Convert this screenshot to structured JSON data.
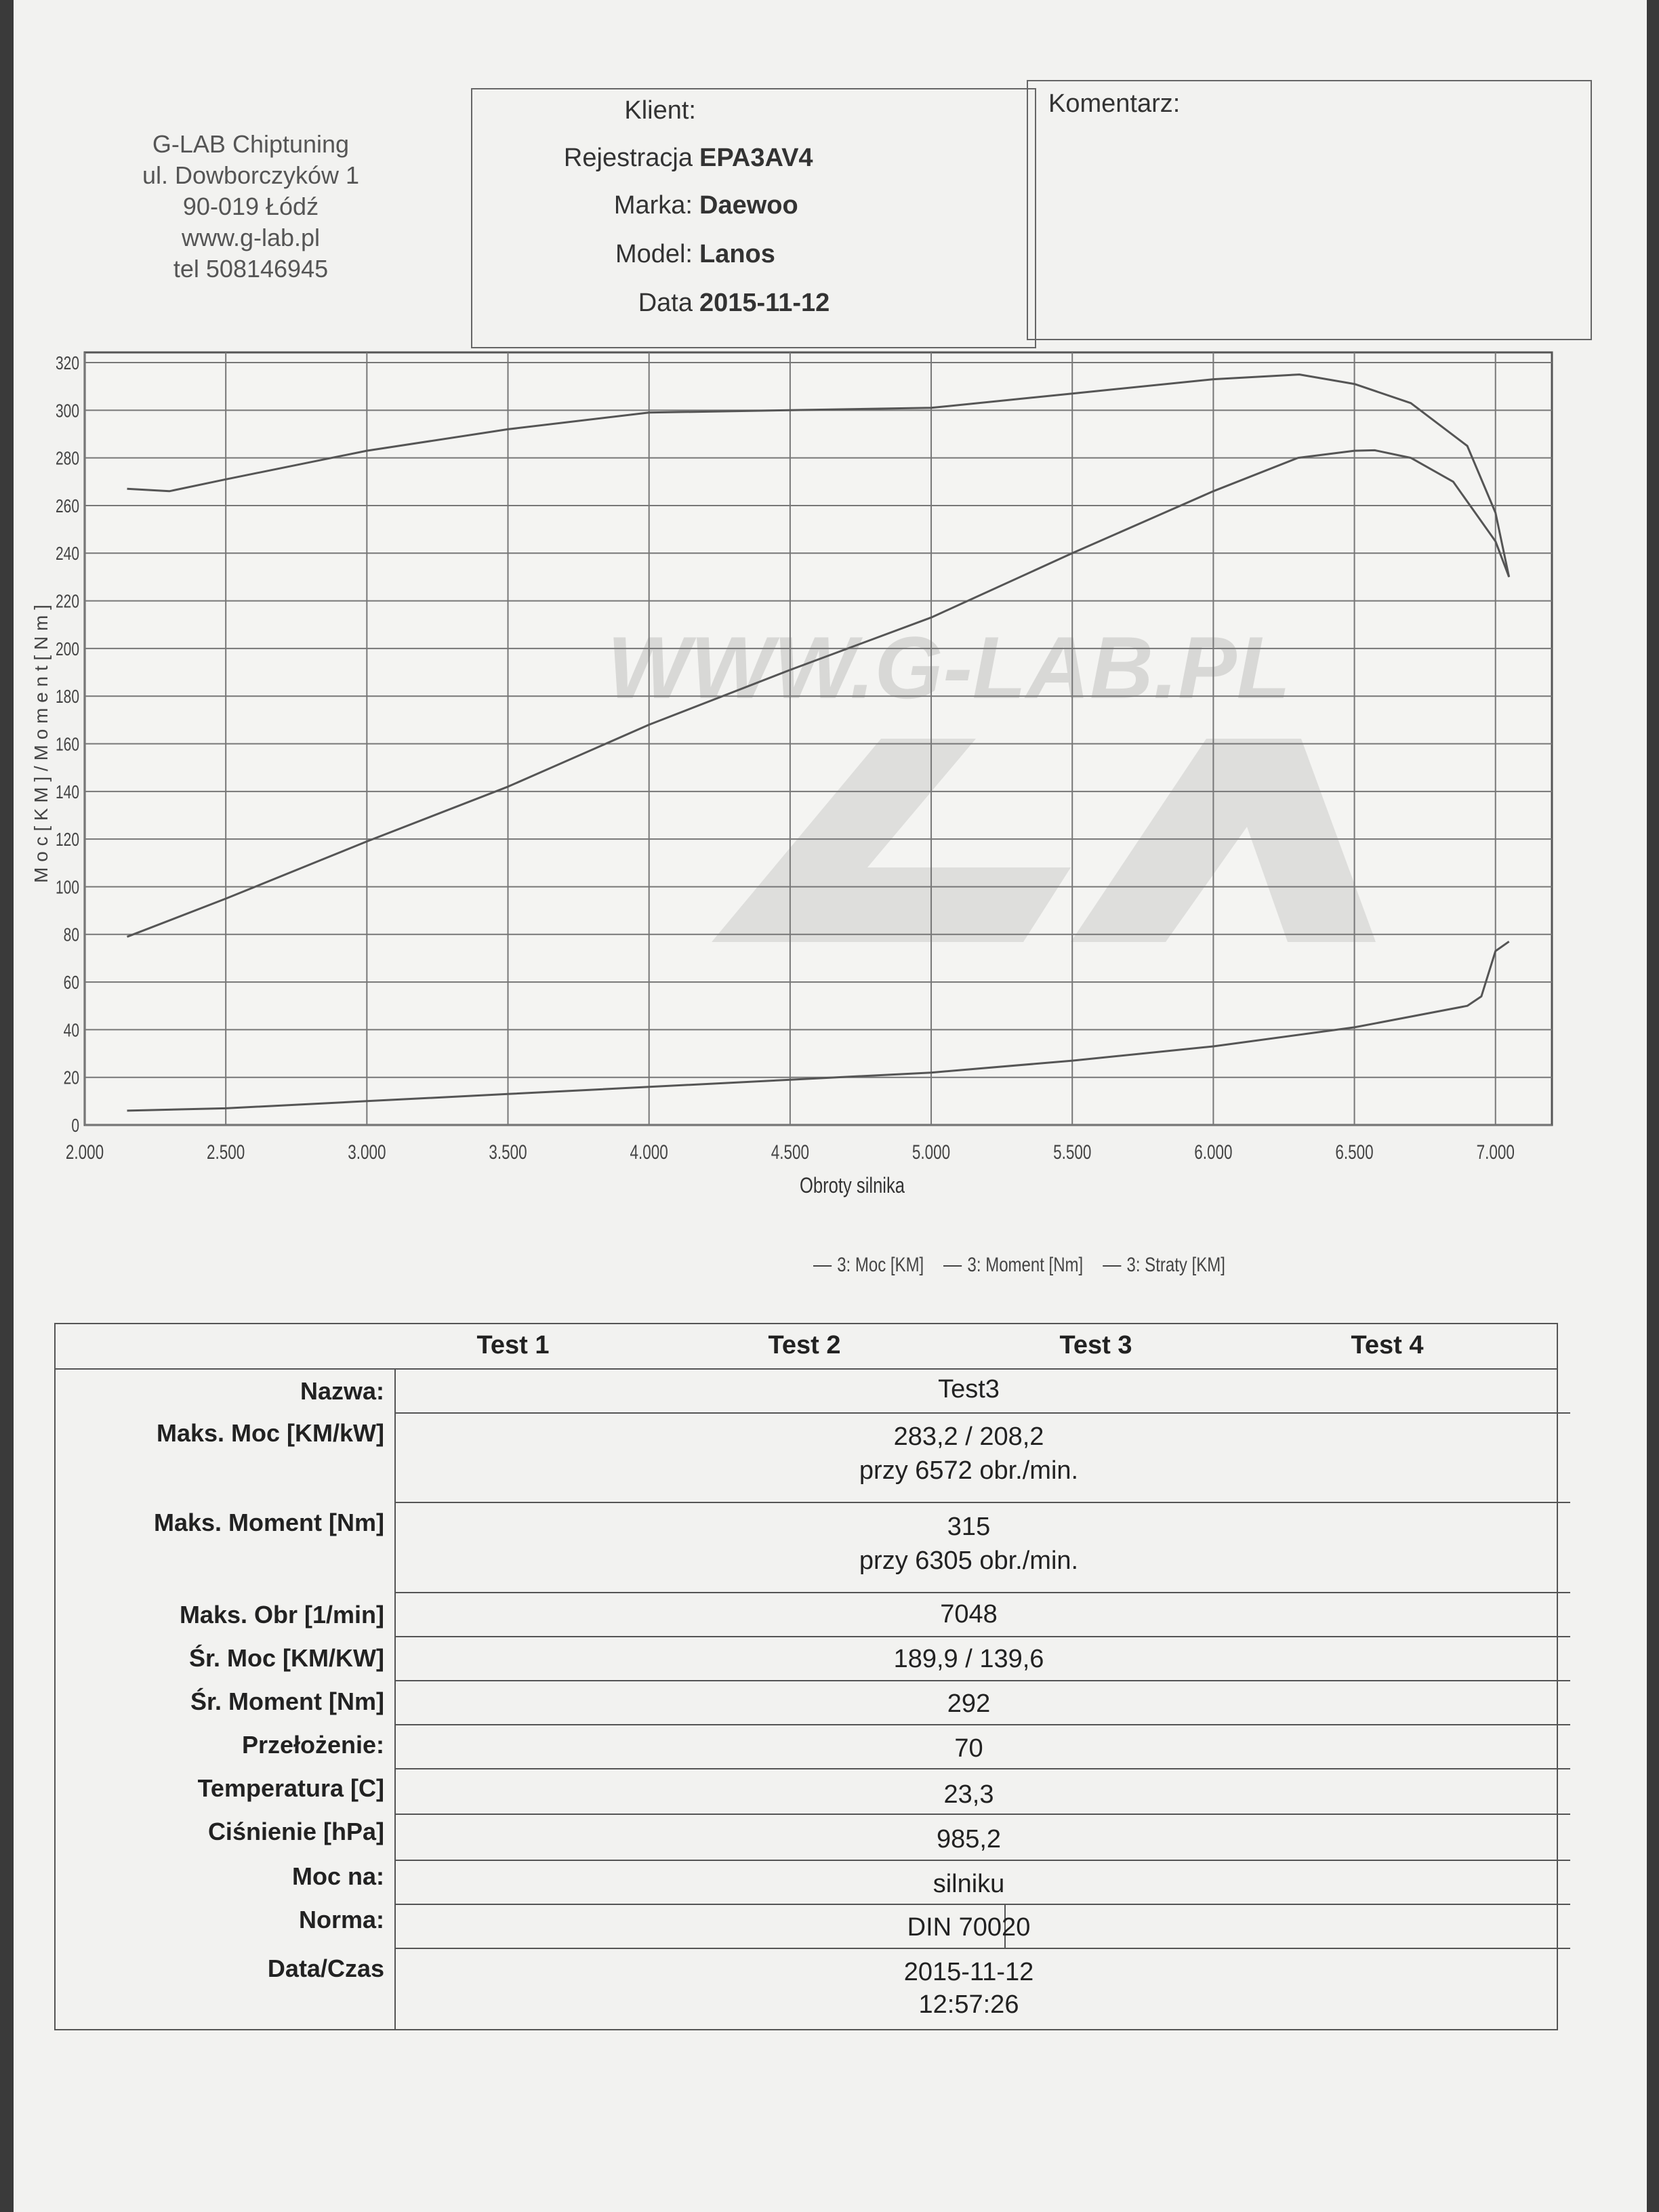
{
  "header": {
    "company_lines": [
      "G-LAB Chiptuning",
      "ul. Dowborczyków 1",
      "90-019 Łódź",
      "www.g-lab.pl",
      "tel 508146945"
    ],
    "client_label": "Klient:",
    "client_value": "",
    "registration_label": "Rejestracja",
    "registration_value": "EPA3AV4",
    "make_label": "Marka:",
    "make_value": "Daewoo",
    "model_label": "Model:",
    "model_value": "Lanos",
    "date_label": "Data",
    "date_value": "2015-11-12",
    "comment_label": "Komentarz:"
  },
  "chart_data": {
    "type": "line",
    "watermark": "WWW.G-LAB.PL",
    "xlabel": "Obroty silnika",
    "ylabel": "M o c  [ K M ]  /  M o m e n t  [ N m ]",
    "xlim": [
      2000,
      7200
    ],
    "ylim": [
      0,
      320
    ],
    "x_ticks": [
      2000,
      2500,
      3000,
      3500,
      4000,
      4500,
      5000,
      5500,
      6000,
      6500,
      7000
    ],
    "x_tick_labels": [
      "2.000",
      "2.500",
      "3.000",
      "3.500",
      "4.000",
      "4.500",
      "5.000",
      "5.500",
      "6.000",
      "6.500",
      "7.000"
    ],
    "y_ticks": [
      0,
      20,
      40,
      60,
      80,
      100,
      120,
      140,
      160,
      180,
      200,
      220,
      240,
      260,
      280,
      300,
      320
    ],
    "grid": true,
    "legend_position": "bottom-center",
    "series": [
      {
        "name": "3: Moc [KM]",
        "x": [
          2150,
          2500,
          3000,
          3500,
          4000,
          4500,
          5000,
          5500,
          6000,
          6300,
          6500,
          6572,
          6700,
          6850,
          7000,
          7048
        ],
        "y": [
          79,
          95,
          119,
          142,
          168,
          191,
          213,
          240,
          266,
          280,
          283,
          283.2,
          280,
          270,
          245,
          230
        ]
      },
      {
        "name": "3: Moment [Nm]",
        "x": [
          2150,
          2300,
          2500,
          3000,
          3500,
          4000,
          4500,
          5000,
          5500,
          6000,
          6305,
          6500,
          6700,
          6900,
          7000,
          7048
        ],
        "y": [
          267,
          266,
          271,
          283,
          292,
          299,
          300,
          301,
          307,
          313,
          315,
          311,
          303,
          285,
          257,
          230
        ]
      },
      {
        "name": "3: Straty [KM]",
        "x": [
          2150,
          2500,
          3000,
          3500,
          4000,
          4500,
          5000,
          5500,
          6000,
          6500,
          6900,
          6950,
          7000,
          7048
        ],
        "y": [
          6,
          7,
          10,
          13,
          16,
          19,
          22,
          27,
          33,
          41,
          50,
          54,
          73,
          77
        ]
      }
    ]
  },
  "table": {
    "test_headers": [
      "Test 1",
      "Test 2",
      "Test 3",
      "Test 4"
    ],
    "rows": [
      {
        "label": "Nazwa:",
        "value": "Test3"
      },
      {
        "label": "Maks. Moc [KM/kW]",
        "value": "283,2 / 208,2",
        "value2": "przy 6572 obr./min."
      },
      {
        "label": "Maks. Moment [Nm]",
        "value": "315",
        "value2": "przy 6305 obr./min."
      },
      {
        "label": "Maks. Obr [1/min]",
        "value": "7048"
      },
      {
        "label": "Śr. Moc [KM/KW]",
        "value": "189,9 / 139,6"
      },
      {
        "label": "Śr. Moment [Nm]",
        "value": "292"
      },
      {
        "label": "Przełożenie:",
        "value": "70"
      },
      {
        "label": "Temperatura [C]",
        "value": "23,3"
      },
      {
        "label": "Ciśnienie [hPa]",
        "value": "985,2"
      },
      {
        "label": "Moc na:",
        "value": "silniku"
      },
      {
        "label": "Norma:",
        "value": "DIN 70020"
      },
      {
        "label": "Data/Czas",
        "value": "2015-11-12",
        "value2": "12:57:26"
      }
    ]
  }
}
